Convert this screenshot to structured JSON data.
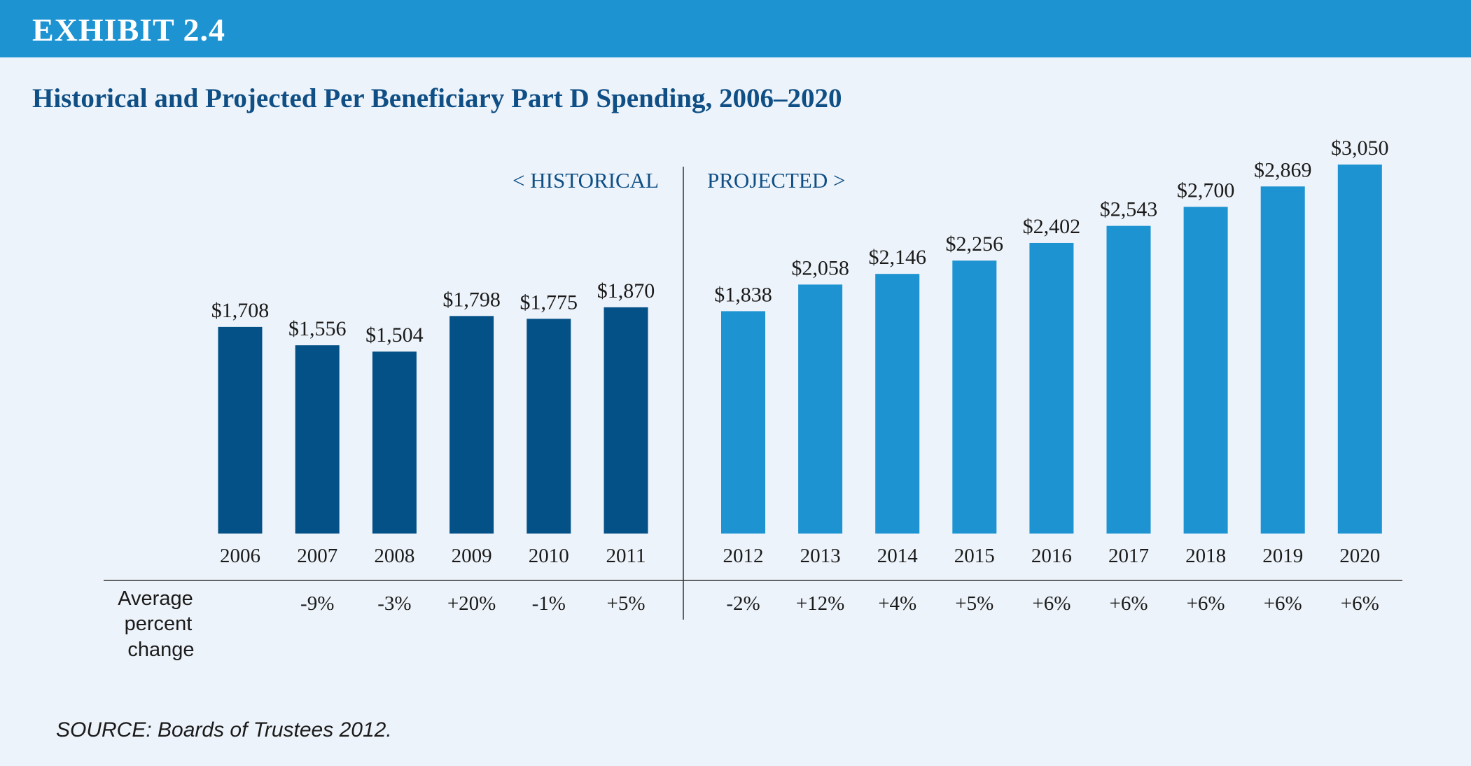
{
  "header": {
    "exhibit_label": "EXHIBIT 2.4",
    "title": "Historical and Projected Per Beneficiary Part D Spending, 2006–2020"
  },
  "footer": {
    "source": "SOURCE:  Boards of Trustees 2012."
  },
  "colors": {
    "header_bar": "#1d93d2",
    "historical": "#045187",
    "projected": "#1d93d2",
    "title": "#0f4f85",
    "background": "#edf3fa"
  },
  "chart_data": {
    "type": "bar",
    "title": "Historical and Projected Per Beneficiary Part D Spending, 2006–2020",
    "categories": [
      "2006",
      "2007",
      "2008",
      "2009",
      "2010",
      "2011",
      "2012",
      "2013",
      "2014",
      "2015",
      "2016",
      "2017",
      "2018",
      "2019",
      "2020"
    ],
    "values": [
      1708,
      1556,
      1504,
      1798,
      1775,
      1870,
      1838,
      2058,
      2146,
      2256,
      2402,
      2543,
      2700,
      2869,
      3050
    ],
    "value_labels": [
      "$1,708",
      "$1,556",
      "$1,504",
      "$1,798",
      "$1,775",
      "$1,870",
      "$1,838",
      "$2,058",
      "$2,146",
      "$2,256",
      "$2,402",
      "$2,543",
      "$2,700",
      "$2,869",
      "$3,050"
    ],
    "series_type": [
      "historical",
      "historical",
      "historical",
      "historical",
      "historical",
      "historical",
      "projected",
      "projected",
      "projected",
      "projected",
      "projected",
      "projected",
      "projected",
      "projected",
      "projected"
    ],
    "section_labels": {
      "historical": "<  HISTORICAL",
      "projected": "PROJECTED  >"
    },
    "percent_change_label": [
      "Average",
      "percent",
      "change"
    ],
    "percent_change": [
      "",
      "-9%",
      "-3%",
      "+20%",
      "-1%",
      "+5%",
      "-2%",
      "+12%",
      "+4%",
      "+5%",
      "+6%",
      "+6%",
      "+6%",
      "+6%",
      "+6%"
    ],
    "ylim": [
      0,
      3050
    ],
    "grid": false,
    "xlabel": "",
    "ylabel": ""
  }
}
